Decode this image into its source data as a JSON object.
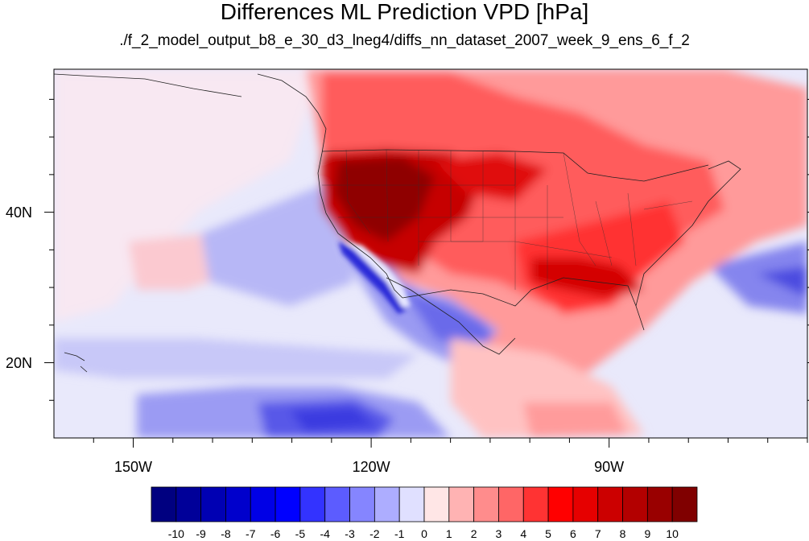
{
  "title": "Differences ML Prediction VPD [hPa]",
  "subtitle": "./f_2_model_output_b8_e_30_d3_lneg4/diffs_nn_dataset_2007_week_9_ens_6_f_2",
  "map": {
    "lon_range": [
      -160,
      -65
    ],
    "lat_range": [
      10,
      59
    ],
    "x_tick_labels": [
      "150W",
      "120W",
      "90W"
    ],
    "x_tick_values": [
      -150,
      -120,
      -90
    ],
    "y_tick_labels": [
      "40N",
      "20N"
    ],
    "y_tick_values": [
      40,
      20
    ]
  },
  "colorbar": {
    "labels": [
      "-10",
      "-9",
      "-8",
      "-7",
      "-6",
      "-5",
      "-4",
      "-3",
      "-2",
      "-1",
      "0",
      "1",
      "2",
      "3",
      "4",
      "5",
      "6",
      "7",
      "8",
      "9",
      "10"
    ],
    "colors": [
      "#000080",
      "#000099",
      "#0000b3",
      "#0000cc",
      "#0000e6",
      "#0000ff",
      "#3333ff",
      "#5c5cff",
      "#8585ff",
      "#adadff",
      "#e0e0ff",
      "#ffe6e6",
      "#ffb3b3",
      "#ff8c8c",
      "#ff6666",
      "#ff3333",
      "#ff0000",
      "#e60000",
      "#cc0000",
      "#b30000",
      "#990000",
      "#800000"
    ]
  }
}
